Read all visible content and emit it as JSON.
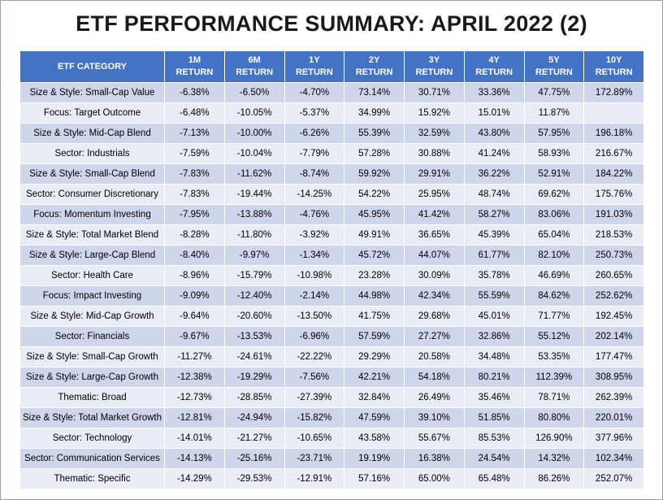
{
  "title": "ETF PERFORMANCE SUMMARY: APRIL 2022 (2)",
  "headers": [
    [
      "ETF CATEGORY",
      ""
    ],
    [
      "1M",
      "RETURN"
    ],
    [
      "6M",
      "RETURN"
    ],
    [
      "1Y",
      "RETURN"
    ],
    [
      "2Y",
      "RETURN"
    ],
    [
      "3Y",
      "RETURN"
    ],
    [
      "4Y",
      "RETURN"
    ],
    [
      "5Y",
      "RETURN"
    ],
    [
      "10Y",
      "RETURN"
    ]
  ],
  "rows": [
    [
      "Size & Style: Small-Cap Value",
      "-6.38%",
      "-6.50%",
      "-4.70%",
      "73.14%",
      "30.71%",
      "33.36%",
      "47.75%",
      "172.89%"
    ],
    [
      "Focus: Target Outcome",
      "-6.48%",
      "-10.05%",
      "-5.37%",
      "34.99%",
      "15.92%",
      "15.01%",
      "11.87%",
      ""
    ],
    [
      "Size & Style: Mid-Cap Blend",
      "-7.13%",
      "-10.00%",
      "-6.26%",
      "55.39%",
      "32.59%",
      "43.80%",
      "57.95%",
      "196.18%"
    ],
    [
      "Sector: Industrials",
      "-7.59%",
      "-10.04%",
      "-7.79%",
      "57.28%",
      "30.88%",
      "41.24%",
      "58.93%",
      "216.67%"
    ],
    [
      "Size & Style: Small-Cap Blend",
      "-7.83%",
      "-11.62%",
      "-8.74%",
      "59.92%",
      "29.91%",
      "36.22%",
      "52.91%",
      "184.22%"
    ],
    [
      "Sector: Consumer Discretionary",
      "-7.83%",
      "-19.44%",
      "-14.25%",
      "54.22%",
      "25.95%",
      "48.74%",
      "69.62%",
      "175.76%"
    ],
    [
      "Focus: Momentum Investing",
      "-7.95%",
      "-13.88%",
      "-4.76%",
      "45.95%",
      "41.42%",
      "58.27%",
      "83.06%",
      "191.03%"
    ],
    [
      "Size & Style: Total Market Blend",
      "-8.28%",
      "-11.80%",
      "-3.92%",
      "49.91%",
      "36.65%",
      "45.39%",
      "65.04%",
      "218.53%"
    ],
    [
      "Size & Style: Large-Cap Blend",
      "-8.40%",
      "-9.97%",
      "-1.34%",
      "45.72%",
      "44.07%",
      "61.77%",
      "82.10%",
      "250.73%"
    ],
    [
      "Sector: Health Care",
      "-8.96%",
      "-15.79%",
      "-10.98%",
      "23.28%",
      "30.09%",
      "35.78%",
      "46.69%",
      "260.65%"
    ],
    [
      "Focus: Impact Investing",
      "-9.09%",
      "-12.40%",
      "-2.14%",
      "44.98%",
      "42.34%",
      "55.59%",
      "84.62%",
      "252.62%"
    ],
    [
      "Size & Style: Mid-Cap Growth",
      "-9.64%",
      "-20.60%",
      "-13.50%",
      "41.75%",
      "29.68%",
      "45.01%",
      "71.77%",
      "192.45%"
    ],
    [
      "Sector: Financials",
      "-9.67%",
      "-13.53%",
      "-6.96%",
      "57.59%",
      "27.27%",
      "32.86%",
      "55.12%",
      "202.14%"
    ],
    [
      "Size & Style: Small-Cap Growth",
      "-11.27%",
      "-24.61%",
      "-22.22%",
      "29.29%",
      "20.58%",
      "34.48%",
      "53.35%",
      "177.47%"
    ],
    [
      "Size & Style: Large-Cap Growth",
      "-12.38%",
      "-19.29%",
      "-7.56%",
      "42.21%",
      "54.18%",
      "80.21%",
      "112.39%",
      "308.95%"
    ],
    [
      "Thematic: Broad",
      "-12.73%",
      "-28.85%",
      "-27.39%",
      "32.84%",
      "26.49%",
      "35.46%",
      "78.71%",
      "262.39%"
    ],
    [
      "Size & Style: Total Market Growth",
      "-12.81%",
      "-24.94%",
      "-15.82%",
      "47.59%",
      "39.10%",
      "51.85%",
      "80.80%",
      "220.01%"
    ],
    [
      "Sector: Technology",
      "-14.01%",
      "-21.27%",
      "-10.65%",
      "43.58%",
      "55.67%",
      "85.53%",
      "126.90%",
      "377.96%"
    ],
    [
      "Sector: Communication Services",
      "-14.13%",
      "-25.16%",
      "-23.71%",
      "19.19%",
      "16.38%",
      "24.54%",
      "14.32%",
      "102.34%"
    ],
    [
      "Thematic: Specific",
      "-14.29%",
      "-29.53%",
      "-12.91%",
      "57.16%",
      "65.00%",
      "65.48%",
      "86.26%",
      "252.07%"
    ]
  ]
}
